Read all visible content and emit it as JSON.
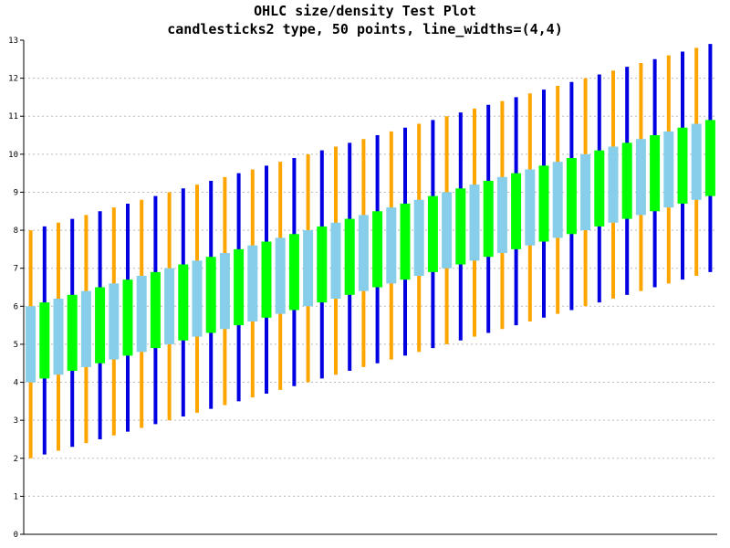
{
  "chart_data": {
    "type": "candlestick",
    "title": "OHLC size/density Test Plot",
    "subtitle": "candlesticks2 type, 50 points, line_widths=(4,4)",
    "xlabel": "",
    "ylabel": "",
    "ylim": [
      0,
      13
    ],
    "yticks": [
      "0",
      "1",
      "2",
      "3",
      "4",
      "5",
      "6",
      "7",
      "8",
      "9",
      "10",
      "11",
      "12",
      "13"
    ],
    "grid": true,
    "count": 50,
    "first": {
      "low": 2.0,
      "high": 8.0,
      "body_bottom": 4.0,
      "body_top": 6.0
    },
    "step": 0.1,
    "colors": {
      "wick_even": "#ffa500",
      "wick_odd": "#0000e0",
      "body_even": "#87ceeb",
      "body_odd": "#00ff00"
    }
  }
}
